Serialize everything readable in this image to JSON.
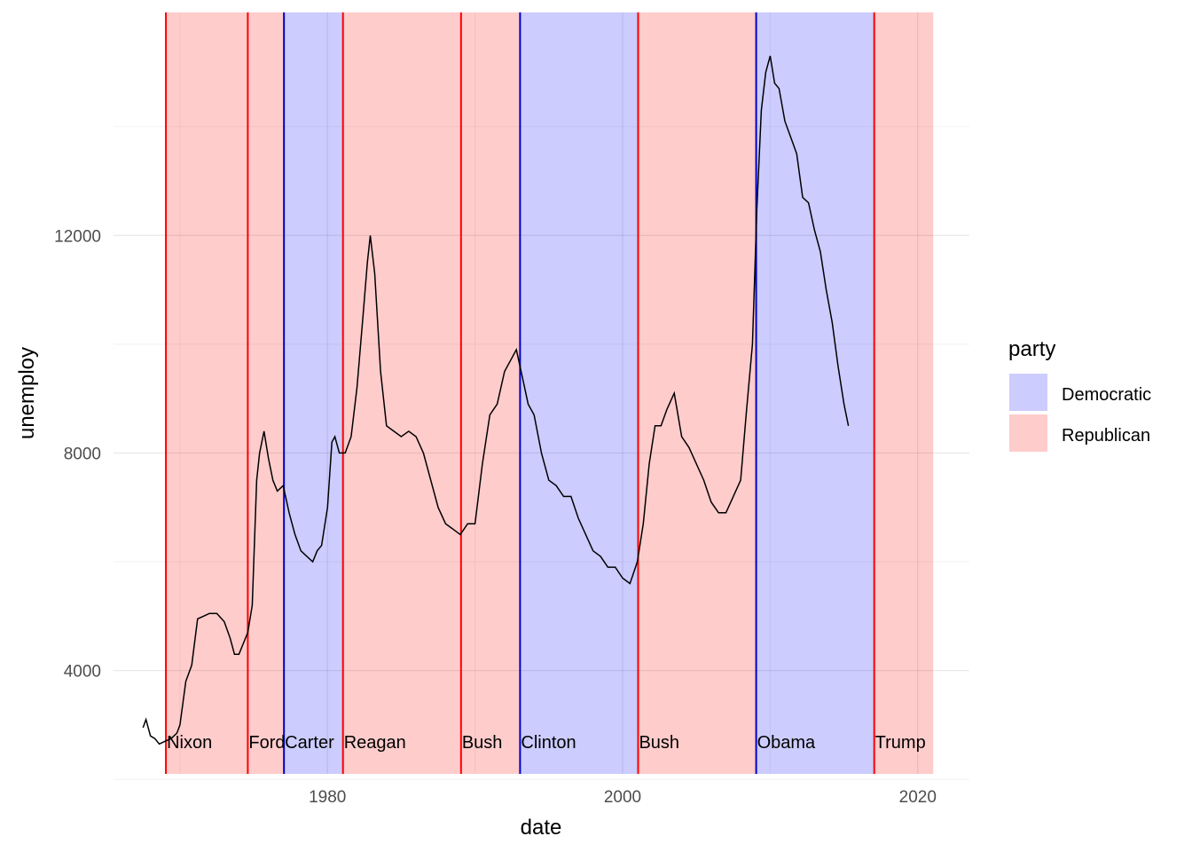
{
  "chart_data": {
    "type": "line",
    "xlabel": "date",
    "ylabel": "unemploy",
    "x_ticks": [
      1980,
      2000,
      2020
    ],
    "y_ticks": [
      4000,
      8000,
      12000
    ],
    "xlim": [
      1965.5,
      2023.5
    ],
    "ylim": [
      2100,
      16100
    ],
    "grid": true,
    "legend": {
      "title": "party",
      "position": "right",
      "entries": [
        {
          "label": "Democratic",
          "color": "#ccccff"
        },
        {
          "label": "Republican",
          "color": "#ffcccc"
        }
      ]
    },
    "colors": {
      "Democratic_fill": "#ccccff",
      "Republican_fill": "#ffcccc",
      "Democratic_line": "#0000cc",
      "Republican_line": "#ff0000",
      "series": "#000000"
    },
    "presidents": [
      {
        "name": "Nixon",
        "start": 1969.05,
        "end": 1974.6,
        "party": "Republican"
      },
      {
        "name": "Ford",
        "start": 1974.6,
        "end": 1977.05,
        "party": "Republican"
      },
      {
        "name": "Carter",
        "start": 1977.05,
        "end": 1981.05,
        "party": "Democratic"
      },
      {
        "name": "Reagan",
        "start": 1981.05,
        "end": 1989.05,
        "party": "Republican"
      },
      {
        "name": "Bush",
        "start": 1989.05,
        "end": 1993.05,
        "party": "Republican"
      },
      {
        "name": "Clinton",
        "start": 1993.05,
        "end": 2001.05,
        "party": "Democratic"
      },
      {
        "name": "Bush",
        "start": 2001.05,
        "end": 2009.05,
        "party": "Republican"
      },
      {
        "name": "Obama",
        "start": 2009.05,
        "end": 2017.05,
        "party": "Democratic"
      },
      {
        "name": "Trump",
        "start": 2017.05,
        "end": 2021.05,
        "party": "Republican"
      }
    ],
    "series": [
      {
        "x": [
          1967.5,
          1967.7,
          1968.0,
          1968.3,
          1968.6,
          1969.0,
          1969.4,
          1969.8,
          1970.0,
          1970.4,
          1970.8,
          1971.2,
          1971.6,
          1972.0,
          1972.5,
          1973.0,
          1973.4,
          1973.7,
          1974.0,
          1974.3,
          1974.6,
          1974.9,
          1975.2,
          1975.4,
          1975.7,
          1976.0,
          1976.3,
          1976.6,
          1977.0,
          1977.4,
          1977.8,
          1978.2,
          1978.6,
          1979.0,
          1979.3,
          1979.6,
          1980.0,
          1980.3,
          1980.5,
          1980.8,
          1981.2,
          1981.6,
          1982.0,
          1982.4,
          1982.7,
          1982.9,
          1983.2,
          1983.6,
          1984.0,
          1984.5,
          1985.0,
          1985.5,
          1986.0,
          1986.5,
          1987.0,
          1987.5,
          1988.0,
          1988.5,
          1989.0,
          1989.5,
          1990.0,
          1990.5,
          1991.0,
          1991.5,
          1992.0,
          1992.4,
          1992.8,
          1993.2,
          1993.6,
          1994.0,
          1994.5,
          1995.0,
          1995.5,
          1996.0,
          1996.5,
          1997.0,
          1997.5,
          1998.0,
          1998.5,
          1999.0,
          1999.5,
          2000.0,
          2000.5,
          2001.0,
          2001.4,
          2001.8,
          2002.2,
          2002.6,
          2003.0,
          2003.5,
          2004.0,
          2004.5,
          2005.0,
          2005.5,
          2006.0,
          2006.5,
          2007.0,
          2007.5,
          2008.0,
          2008.4,
          2008.8,
          2009.1,
          2009.4,
          2009.7,
          2010.0,
          2010.3,
          2010.6,
          2011.0,
          2011.4,
          2011.8,
          2012.2,
          2012.6,
          2013.0,
          2013.4,
          2013.8,
          2014.2,
          2014.6,
          2015.0,
          2015.3
        ],
        "y": [
          2950,
          3100,
          2800,
          2750,
          2650,
          2700,
          2750,
          2850,
          3000,
          3800,
          4100,
          4950,
          5000,
          5050,
          5050,
          4900,
          4600,
          4300,
          4300,
          4500,
          4700,
          5200,
          7500,
          8000,
          8400,
          7900,
          7500,
          7300,
          7400,
          6900,
          6500,
          6200,
          6100,
          6000,
          6200,
          6300,
          7000,
          8200,
          8300,
          8000,
          8000,
          8300,
          9200,
          10500,
          11500,
          12000,
          11300,
          9500,
          8500,
          8400,
          8300,
          8400,
          8300,
          8000,
          7500,
          7000,
          6700,
          6600,
          6500,
          6700,
          6700,
          7800,
          8700,
          8900,
          9500,
          9700,
          9900,
          9400,
          8900,
          8700,
          8000,
          7500,
          7400,
          7200,
          7200,
          6800,
          6500,
          6200,
          6100,
          5900,
          5900,
          5700,
          5600,
          6000,
          6700,
          7800,
          8500,
          8500,
          8800,
          9100,
          8300,
          8100,
          7800,
          7500,
          7100,
          6900,
          6900,
          7200,
          7500,
          8800,
          10000,
          12500,
          14300,
          15000,
          15300,
          14800,
          14700,
          14100,
          13800,
          13500,
          12700,
          12600,
          12100,
          11700,
          11000,
          10400,
          9600,
          8900,
          8500
        ]
      }
    ]
  }
}
